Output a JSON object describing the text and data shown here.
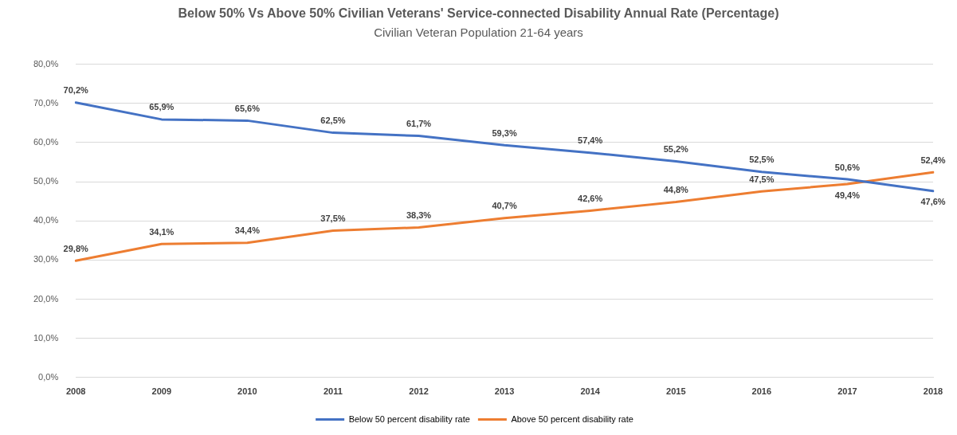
{
  "chart_data": {
    "type": "line",
    "title": "Below 50% Vs Above 50% Civilian Veterans' Service-connected Disability Annual Rate (Percentage)",
    "subtitle": "Civilian Veteran Population 21-64 years",
    "categories": [
      "2008",
      "2009",
      "2010",
      "2011",
      "2012",
      "2013",
      "2014",
      "2015",
      "2016",
      "2017",
      "2018"
    ],
    "series": [
      {
        "name": "Below 50 percent disability rate",
        "color": "#4472c4",
        "values": [
          70.2,
          65.9,
          65.6,
          62.5,
          61.7,
          59.3,
          57.4,
          55.2,
          52.5,
          50.6,
          47.6
        ],
        "value_labels": [
          "70,2%",
          "65,9%",
          "65,6%",
          "62,5%",
          "61,7%",
          "59,3%",
          "57,4%",
          "55,2%",
          "52,5%",
          "50,6%",
          "47,6%"
        ]
      },
      {
        "name": "Above 50 percent disability rate",
        "color": "#ed7d31",
        "values": [
          29.8,
          34.1,
          34.4,
          37.5,
          38.3,
          40.7,
          42.6,
          44.8,
          47.5,
          49.4,
          52.4
        ],
        "value_labels": [
          "29,8%",
          "34,1%",
          "34,4%",
          "37,5%",
          "38,3%",
          "40,7%",
          "42,6%",
          "44,8%",
          "47,5%",
          "49,4%",
          "52,4%"
        ]
      }
    ],
    "ylim": [
      0,
      80
    ],
    "yticks": [
      {
        "value": 0,
        "label": "0,0%"
      },
      {
        "value": 10,
        "label": "10,0%"
      },
      {
        "value": 20,
        "label": "20,0%"
      },
      {
        "value": 30,
        "label": "30,0%"
      },
      {
        "value": 40,
        "label": "40,0%"
      },
      {
        "value": 50,
        "label": "50,0%"
      },
      {
        "value": 60,
        "label": "60,0%"
      },
      {
        "value": 70,
        "label": "70,0%"
      },
      {
        "value": 80,
        "label": "80,0%"
      }
    ],
    "grid": "y",
    "legend": "bottom",
    "marker": "none",
    "line_style": "solid"
  }
}
